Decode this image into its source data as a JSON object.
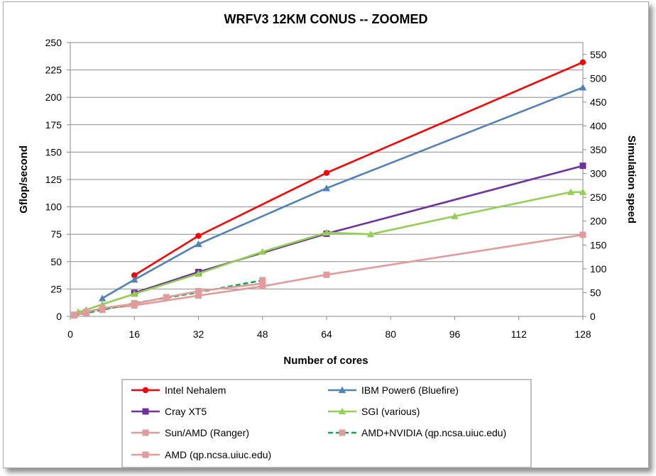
{
  "chart_data": {
    "type": "line",
    "title": "WRFV3 12KM CONUS -- ZOOMED",
    "xlabel": "Number of cores",
    "ylabel": "Gflop/second",
    "y2label": "Simulation speed",
    "xlim": [
      0,
      128
    ],
    "ylim": [
      0,
      250
    ],
    "y2lim": [
      0,
      575
    ],
    "xticks": [
      0,
      16,
      32,
      48,
      64,
      80,
      96,
      112,
      128
    ],
    "yticks": [
      0,
      25,
      50,
      75,
      100,
      125,
      150,
      175,
      200,
      225,
      250
    ],
    "y2ticks": [
      0,
      50,
      100,
      150,
      200,
      250,
      300,
      350,
      400,
      450,
      500,
      550
    ],
    "grid": "horizontal",
    "legend_position": "bottom",
    "series": [
      {
        "name": "Intel Nehalem",
        "color": "#ff0000",
        "marker": "circle",
        "dash": "solid",
        "x": [
          16,
          32,
          64,
          128
        ],
        "y": [
          37.5,
          73.5,
          131,
          232
        ]
      },
      {
        "name": "IBM Power6 (Bluefire)",
        "color": "#4f81bd",
        "marker": "triangle",
        "dash": "solid",
        "x": [
          8,
          16,
          32,
          64,
          128
        ],
        "y": [
          16.5,
          33.5,
          66,
          117,
          209
        ]
      },
      {
        "name": "Cray XT5",
        "color": "#7030a0",
        "marker": "square",
        "dash": "solid",
        "x": [
          16,
          32,
          64,
          128
        ],
        "y": [
          21.5,
          40.5,
          75.5,
          137.5
        ]
      },
      {
        "name": "SGI (various)",
        "color": "#92d050",
        "marker": "triangle",
        "dash": "solid",
        "x": [
          2,
          4,
          8,
          16,
          32,
          48,
          64,
          75,
          96,
          125,
          128
        ],
        "y": [
          4,
          6,
          11,
          20.5,
          39,
          59,
          76.5,
          75,
          91.5,
          113.5,
          113.5
        ]
      },
      {
        "name": "Sun/AMD (Ranger)",
        "color": "#e39a9a",
        "marker": "square",
        "dash": "solid",
        "x": [
          1,
          4,
          8,
          16,
          32,
          48,
          64,
          128
        ],
        "y": [
          1,
          4,
          7,
          10,
          19,
          27.5,
          38,
          74.5
        ]
      },
      {
        "name": "AMD+NVIDIA (qp.ncsa.uiuc.edu)",
        "color": "#00b050",
        "marker": "square",
        "marker_color": "#e39a9a",
        "dash": "dashed",
        "x": [
          1,
          4,
          8,
          16,
          32,
          48
        ],
        "y": [
          1,
          3,
          6,
          12,
          22,
          33
        ]
      },
      {
        "name": "AMD (qp.ncsa.uiuc.edu)",
        "color": "#e39a9a",
        "marker": "square",
        "dash": "solid",
        "x": [
          1,
          4,
          8,
          16,
          24,
          32,
          48
        ],
        "y": [
          1.5,
          4,
          7.5,
          11.5,
          17.5,
          23,
          30
        ]
      }
    ]
  }
}
